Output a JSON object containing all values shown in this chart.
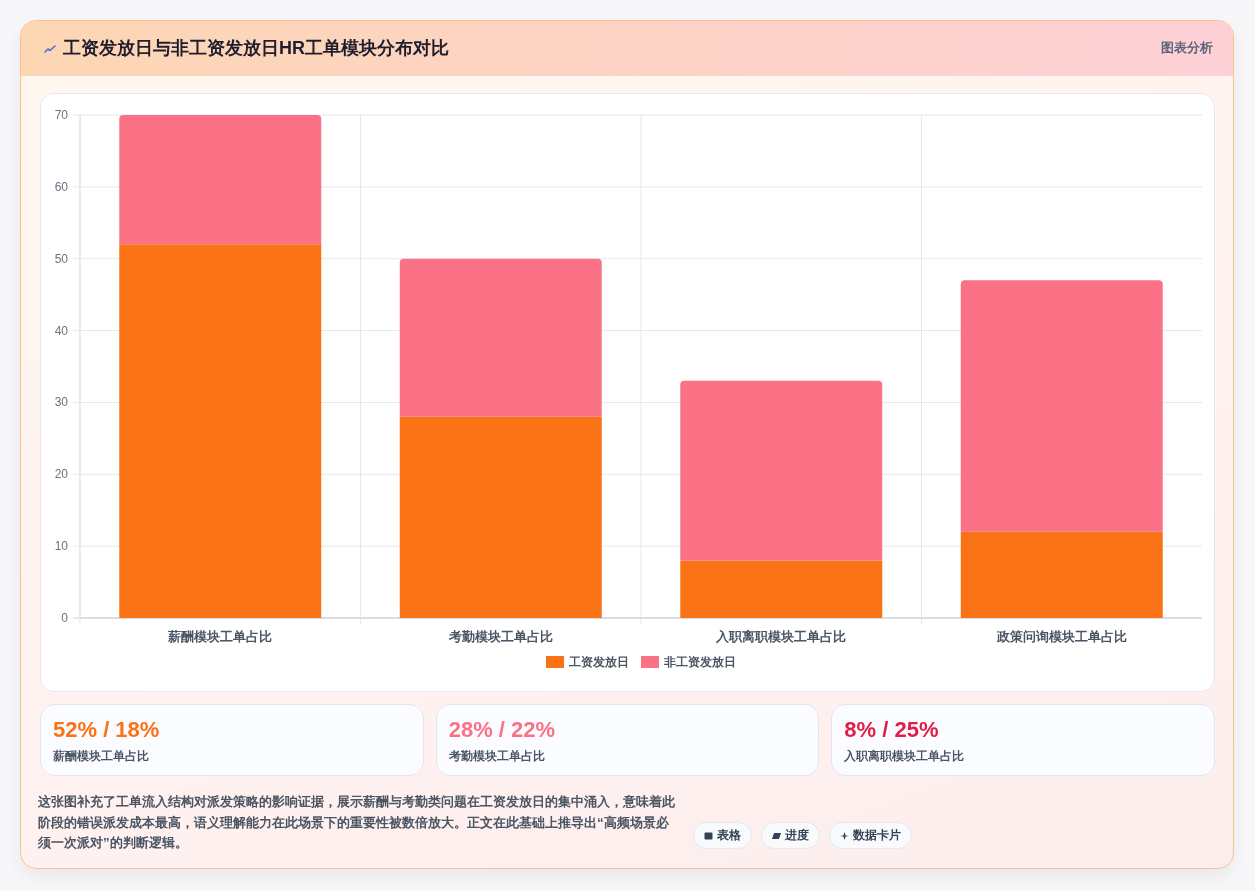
{
  "chart_data": [
    {
      "type": "bar",
      "title": "工资发放日与非工资发放日HR工单模块分布对比",
      "categories": [
        "薪酬模块工单占比",
        "考勤模块工单占比",
        "入职离职模块工单占比",
        "政策问询模块工单占比"
      ],
      "series": [
        {
          "name": "工资发放日",
          "color": "#f97316",
          "values": [
            52,
            28,
            8,
            12
          ]
        },
        {
          "name": "非工资发放日",
          "color": "#fb7185",
          "values": [
            18,
            22,
            25,
            35
          ]
        }
      ],
      "stacked": true,
      "ylim": [
        0,
        70
      ],
      "yticks": [
        0,
        10,
        20,
        30,
        40,
        50,
        60,
        70
      ],
      "grid": true,
      "legend": "bottom",
      "annotations": [
        "图表分析"
      ]
    },
    {
      "type": "other",
      "colors": [
        "#f97316",
        "#fb7185",
        "#e11d48"
      ],
      "annotations": [
        "52% / 18%",
        "薪酬模块工单占比",
        "28% / 22%",
        "考勤模块工单占比",
        "8% / 25%",
        "入职离职模块工单占比",
        "这张图补充了工单流入结构对派发策略的影响证据，展示薪酬与考勤类问题在工资发放日的集中涌入，意味着此阶段的错误派发成本最高，语义理解能力在此场景下的重要性被数倍放大。正文在此基础上推导出“高频场景必须一次派对”的判断逻辑。",
        "表格",
        "进度",
        "数据卡片"
      ]
    }
  ]
}
